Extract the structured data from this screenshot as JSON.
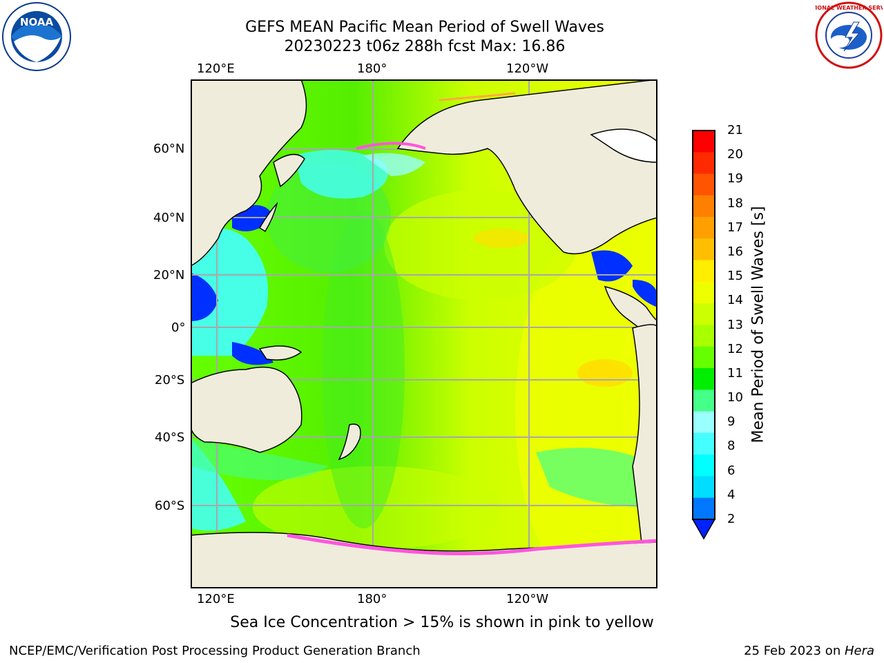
{
  "header": {
    "title_line1": "GEFS MEAN Pacific Mean Period of Swell Waves",
    "title_line2": "20230223 t06z 288h fcst   Max: 16.86"
  },
  "logos": {
    "left": "NOAA",
    "left_ring": "NATIONAL OCEANIC AND ATMOSPHERIC ADMINISTRATION · U.S. DEPARTMENT OF COMMERCE",
    "right": "NATIONAL WEATHER SERVICE"
  },
  "map": {
    "lon_labels_top": [
      "120°E",
      "180°",
      "120°W"
    ],
    "lon_labels_bottom": [
      "120°E",
      "180°",
      "120°W"
    ],
    "lat_labels": [
      "60°N",
      "40°N",
      "20°N",
      "0°",
      "20°S",
      "40°S",
      "60°S"
    ],
    "land_color": "#efecdc",
    "grid": true
  },
  "colorbar": {
    "title": "Mean Period of Swell Waves [s]",
    "labels": [
      "21",
      "20",
      "19",
      "18",
      "17",
      "16",
      "15",
      "14",
      "13",
      "12",
      "11",
      "10",
      "9",
      "8",
      "6",
      "4",
      "2"
    ],
    "colors_top_to_bottom": [
      "#ff0000",
      "#ff2a00",
      "#ff5500",
      "#ff7f00",
      "#ff9f00",
      "#ffbf00",
      "#ffee00",
      "#eeff00",
      "#ccff00",
      "#a8ff00",
      "#66ff00",
      "#00ee00",
      "#44ff88",
      "#99ffff",
      "#44ffff",
      "#00ffff",
      "#00ddff",
      "#0077ff"
    ],
    "extend_color": "#0022ff"
  },
  "note": "Sea Ice Concentration > 15% is shown in pink to yellow",
  "footer": {
    "left": "NCEP/EMC/Verification Post Processing Product Generation Branch",
    "right_prefix": "25 Feb 2023 on ",
    "right_host": "Hera"
  }
}
